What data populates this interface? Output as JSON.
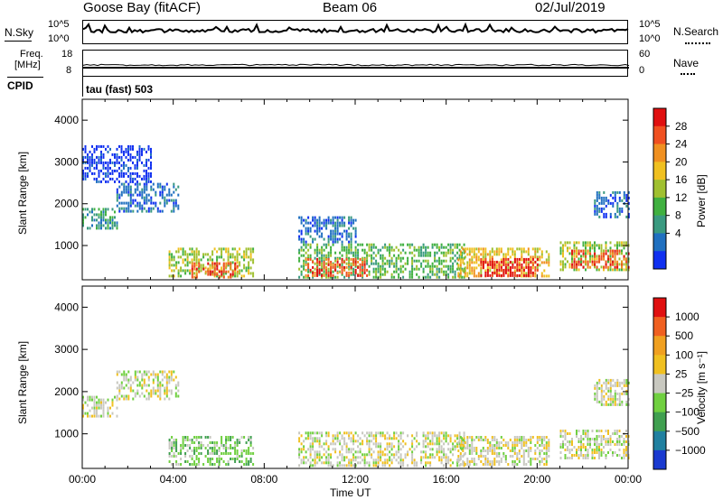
{
  "header": {
    "station": "Goose Bay (fitACF)",
    "beam": "Beam 06",
    "date": "02/Jul/2019"
  },
  "top_panels": {
    "nsky_label": "N.Sky",
    "nsky_ticks": [
      "10^5",
      "10^0"
    ],
    "nsearch_label": "N.Search",
    "nsearch_ticks": [
      "10^5",
      "10^0"
    ],
    "freq_label_1": "Freq.",
    "freq_label_2": "[MHz]",
    "freq_ticks": [
      "18",
      "8"
    ],
    "nave_label": "Nave",
    "nave_ticks": [
      "60",
      "0"
    ],
    "cpid_label": "CPID",
    "cpid_value": "tau (fast) 503"
  },
  "chart_data": [
    {
      "type": "heatmap",
      "name": "power",
      "ylabel": "Slant Range [km]",
      "yticks": [
        "1000",
        "2000",
        "3000",
        "4000"
      ],
      "ylim": [
        180,
        4500
      ],
      "xlabel": "Time UT",
      "xticks": [
        "00:00",
        "04:00",
        "08:00",
        "12:00",
        "16:00",
        "20:00",
        "00:00"
      ],
      "xlim": [
        0,
        24
      ],
      "colorbar": {
        "label": "Power [dB]",
        "ticks": [
          "4",
          "8",
          "12",
          "16",
          "20",
          "24",
          "28"
        ],
        "colors": [
          "#1030f0",
          "#2070c0",
          "#3a9a80",
          "#40b040",
          "#a0c030",
          "#f0c020",
          "#f09020",
          "#f05020",
          "#e01010"
        ]
      },
      "regions": [
        {
          "t0": 0.0,
          "t1": 1.5,
          "r0": 1400,
          "r1": 1900,
          "level": 2
        },
        {
          "t0": 1.5,
          "t1": 4.2,
          "r0": 1800,
          "r1": 2500,
          "level": 1
        },
        {
          "t0": 0.0,
          "t1": 3.0,
          "r0": 2500,
          "r1": 3400,
          "level": 0
        },
        {
          "t0": 3.8,
          "t1": 7.5,
          "r0": 250,
          "r1": 950,
          "level": 4
        },
        {
          "t0": 4.8,
          "t1": 6.8,
          "r0": 250,
          "r1": 600,
          "level": 7
        },
        {
          "t0": 9.5,
          "t1": 16.8,
          "r0": 250,
          "r1": 1050,
          "level": 3
        },
        {
          "t0": 9.8,
          "t1": 12.5,
          "r0": 300,
          "r1": 700,
          "level": 7
        },
        {
          "t0": 9.5,
          "t1": 12.0,
          "r0": 1100,
          "r1": 1700,
          "level": 1
        },
        {
          "t0": 16.5,
          "t1": 20.5,
          "r0": 250,
          "r1": 950,
          "level": 5
        },
        {
          "t0": 17.5,
          "t1": 20.0,
          "r0": 300,
          "r1": 700,
          "level": 8
        },
        {
          "t0": 21.0,
          "t1": 24.0,
          "r0": 400,
          "r1": 1100,
          "level": 4
        },
        {
          "t0": 21.5,
          "t1": 24.0,
          "r0": 450,
          "r1": 900,
          "level": 7
        },
        {
          "t0": 22.5,
          "t1": 24.0,
          "r0": 1700,
          "r1": 2300,
          "level": 1
        }
      ]
    },
    {
      "type": "heatmap",
      "name": "velocity",
      "ylabel": "Slant Range [km]",
      "yticks": [
        "1000",
        "2000",
        "3000",
        "4000"
      ],
      "ylim": [
        180,
        4500
      ],
      "xlabel": "Time UT",
      "xticks": [
        "00:00",
        "04:00",
        "08:00",
        "12:00",
        "16:00",
        "20:00",
        "00:00"
      ],
      "xlim": [
        0,
        24
      ],
      "colorbar": {
        "label": "Velocity [m s⁻¹]",
        "ticks": [
          "1000",
          "500",
          "100",
          "25",
          "−25",
          "−100",
          "−500",
          "−1000"
        ],
        "colors": [
          "#1a3ad0",
          "#2080a0",
          "#40a050",
          "#70d040",
          "#c8c8c0",
          "#f0c020",
          "#f0a020",
          "#f06020",
          "#e01010"
        ]
      },
      "regions": [
        {
          "t0": 0.0,
          "t1": 1.5,
          "r0": 1400,
          "r1": 1900,
          "level": 4
        },
        {
          "t0": 1.5,
          "t1": 4.2,
          "r0": 1800,
          "r1": 2500,
          "level": 4
        },
        {
          "t0": 3.8,
          "t1": 7.5,
          "r0": 250,
          "r1": 950,
          "level": 3
        },
        {
          "t0": 9.5,
          "t1": 16.8,
          "r0": 250,
          "r1": 1050,
          "level": 4
        },
        {
          "t0": 16.5,
          "t1": 20.5,
          "r0": 250,
          "r1": 950,
          "level": 4
        },
        {
          "t0": 21.0,
          "t1": 24.0,
          "r0": 400,
          "r1": 1100,
          "level": 4
        },
        {
          "t0": 22.5,
          "t1": 24.0,
          "r0": 1700,
          "r1": 2300,
          "level": 4
        }
      ]
    }
  ]
}
